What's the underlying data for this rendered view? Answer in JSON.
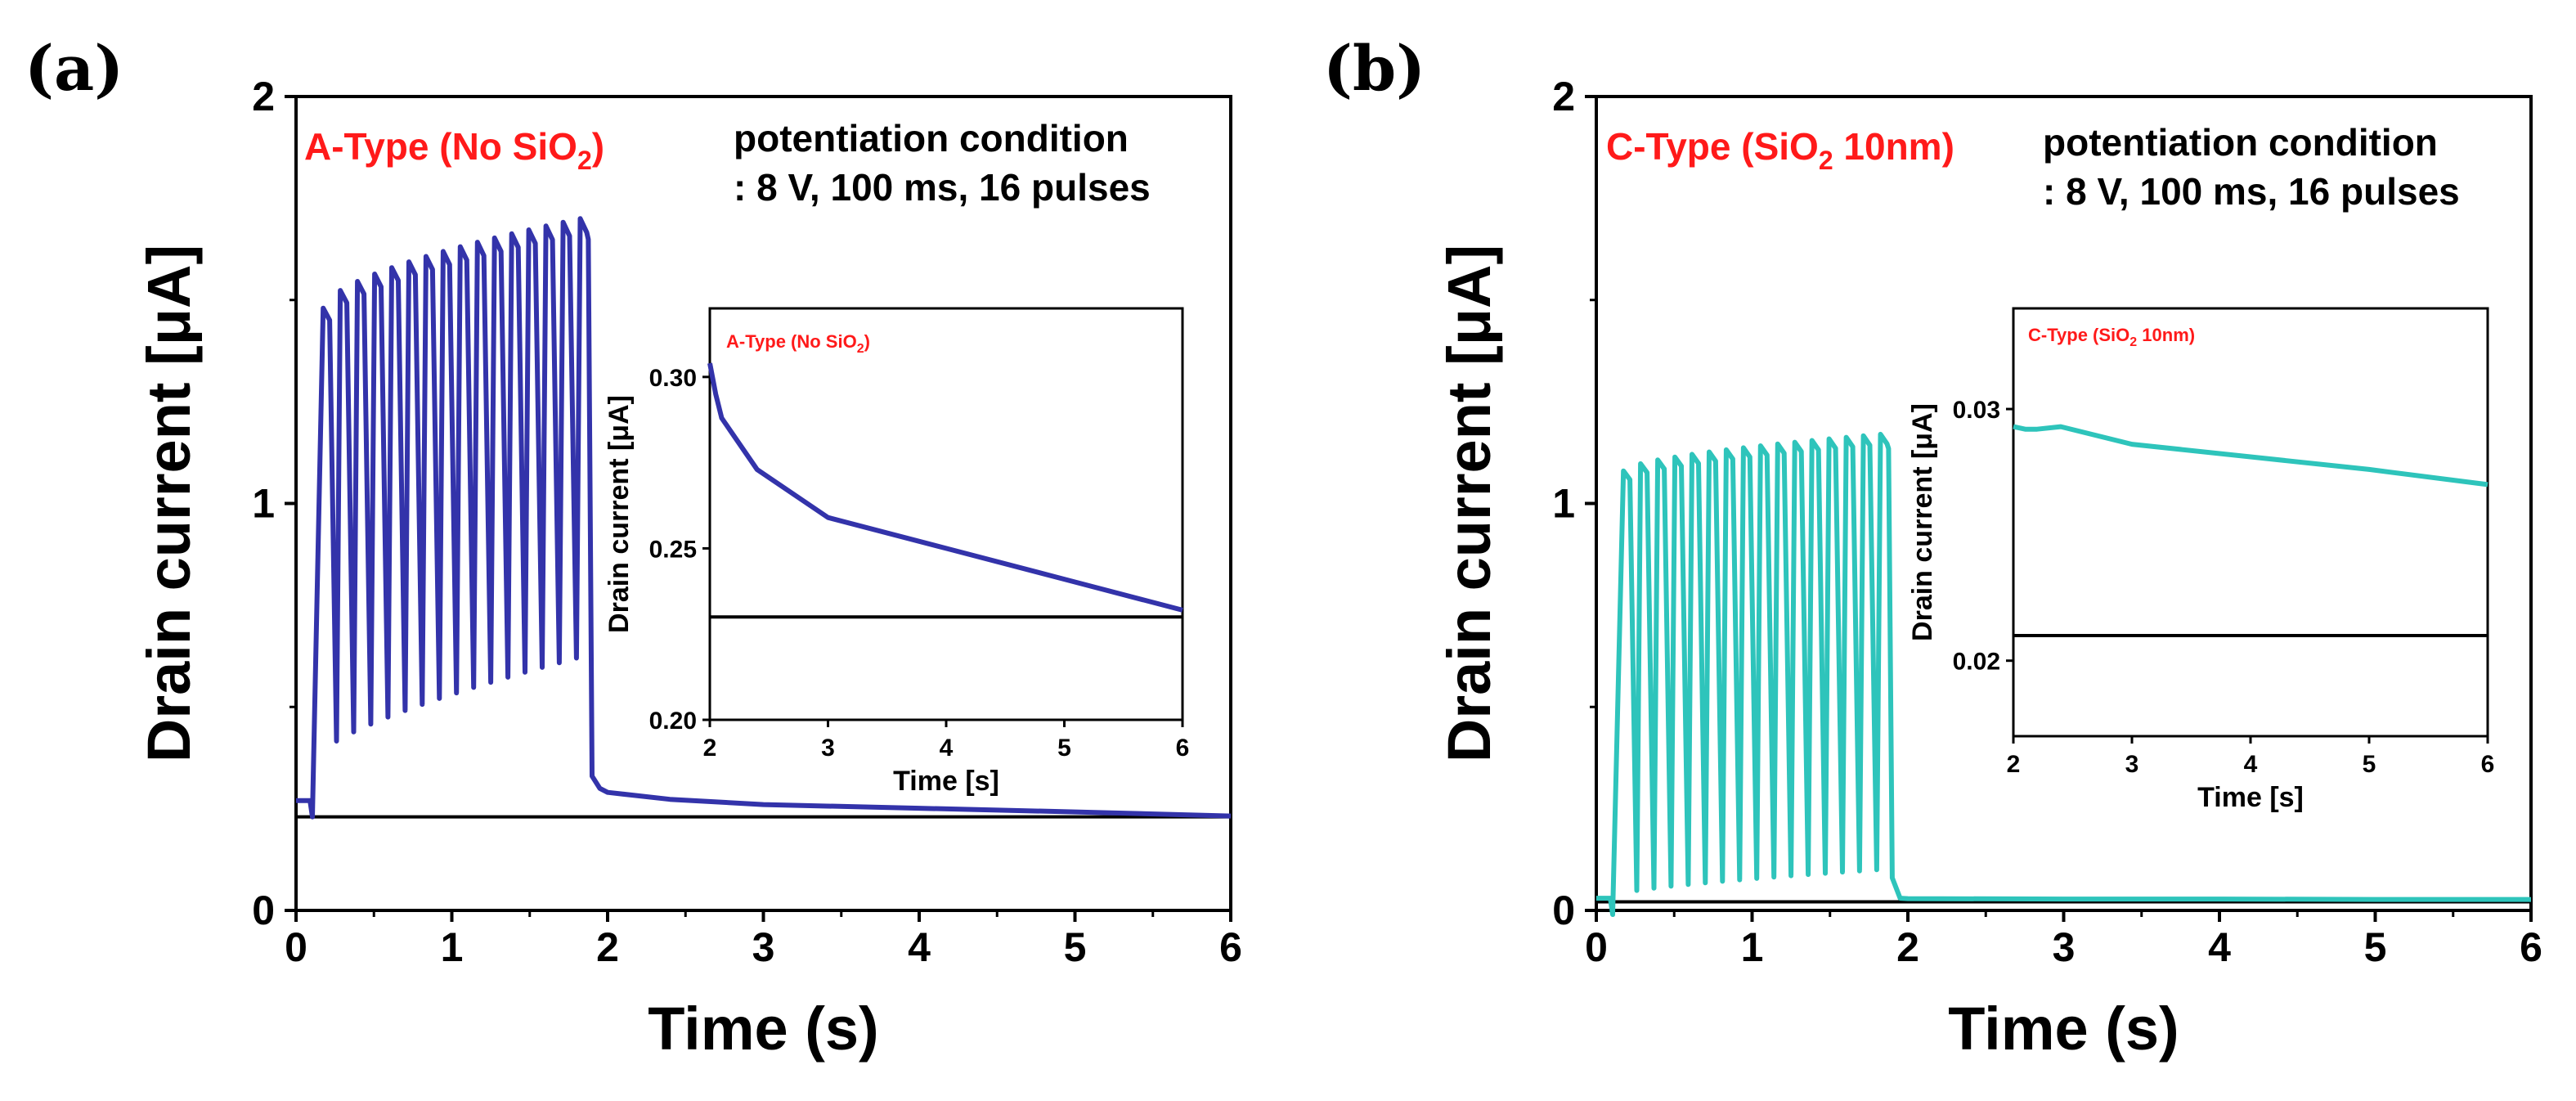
{
  "chart_data": [
    {
      "type": "line",
      "panel_label": "(a)",
      "xlabel": "Time (s)",
      "ylabel": "Drain current [μA]",
      "xlim": [
        0,
        6
      ],
      "ylim": [
        0,
        2
      ],
      "xticks": [
        "0",
        "1",
        "2",
        "3",
        "4",
        "5",
        "6"
      ],
      "yticks": [
        "0",
        "1",
        "2"
      ],
      "type_label": {
        "main": "A-Type (No SiO",
        "sub": "2",
        "tail": ")"
      },
      "condition": [
        "potentiation condition",
        ": 8 V, 100 ms, 16 pulses"
      ],
      "line_color": "#3333aa",
      "reference_level": 0.23,
      "pulses": {
        "count": 16,
        "start": 0.15,
        "period": 0.11,
        "peak_first": 1.48,
        "peak_last": 1.7,
        "trough_first": 0.38,
        "trough_last": 0.62
      },
      "baseline_before": 0.27,
      "decay": {
        "x": [
          1.9,
          1.95,
          2.0,
          2.4,
          3.0,
          4.0,
          5.0,
          6.0
        ],
        "y": [
          0.33,
          0.3,
          0.29,
          0.273,
          0.26,
          0.251,
          0.242,
          0.232
        ]
      },
      "inset": {
        "xlabel": "Time [s]",
        "ylabel": "Drain current [μA]",
        "xlim": [
          2,
          6
        ],
        "ylim": [
          0.2,
          0.32
        ],
        "xticks": [
          "2",
          "3",
          "4",
          "5",
          "6"
        ],
        "yticks": [
          "0.20",
          "0.25",
          "0.30"
        ],
        "type_label": {
          "main": "A-Type (No SiO",
          "sub": "2",
          "tail": ")"
        },
        "series": {
          "x": [
            2.0,
            2.05,
            2.1,
            2.4,
            3.0,
            4.0,
            5.0,
            6.0
          ],
          "y": [
            0.304,
            0.295,
            0.288,
            0.273,
            0.259,
            0.25,
            0.241,
            0.232
          ]
        },
        "reference_level": 0.23
      }
    },
    {
      "type": "line",
      "panel_label": "(b)",
      "xlabel": "Time (s)",
      "ylabel": "Drain current [μA]",
      "xlim": [
        0,
        6
      ],
      "ylim": [
        0,
        2
      ],
      "xticks": [
        "0",
        "1",
        "2",
        "3",
        "4",
        "5",
        "6"
      ],
      "yticks": [
        "0",
        "1",
        "2"
      ],
      "type_label": {
        "main": "C-Type (SiO",
        "sub": "2",
        "tail": " 10nm)"
      },
      "condition": [
        "potentiation condition",
        ": 8 V, 100 ms, 16 pulses"
      ],
      "line_color": "#2ec4bb",
      "reference_level": 0.021,
      "pulses": {
        "count": 16,
        "start": 0.15,
        "period": 0.11,
        "peak_first": 1.08,
        "peak_last": 1.17,
        "trough_first": 0.04,
        "trough_last": 0.1
      },
      "baseline_before": 0.03,
      "decay": {
        "x": [
          1.9,
          1.95,
          2.0,
          3.0,
          4.0,
          5.0,
          6.0
        ],
        "y": [
          0.08,
          0.03,
          0.029,
          0.028,
          0.028,
          0.027,
          0.027
        ]
      },
      "inset": {
        "xlabel": "Time [s]",
        "ylabel": "Drain current [μA]",
        "xlim": [
          2,
          6
        ],
        "ylim": [
          0.017,
          0.034
        ],
        "xticks": [
          "2",
          "3",
          "4",
          "5",
          "6"
        ],
        "yticks": [
          "0.02",
          "0.03"
        ],
        "type_label": {
          "main": "C-Type (SiO",
          "sub": "2",
          "tail": " 10nm)"
        },
        "series": {
          "x": [
            2.0,
            2.1,
            2.2,
            2.4,
            3.0,
            4.0,
            5.0,
            6.0
          ],
          "y": [
            0.0293,
            0.0292,
            0.0292,
            0.0293,
            0.0286,
            0.0281,
            0.0276,
            0.027
          ]
        },
        "reference_level": 0.021
      }
    }
  ]
}
